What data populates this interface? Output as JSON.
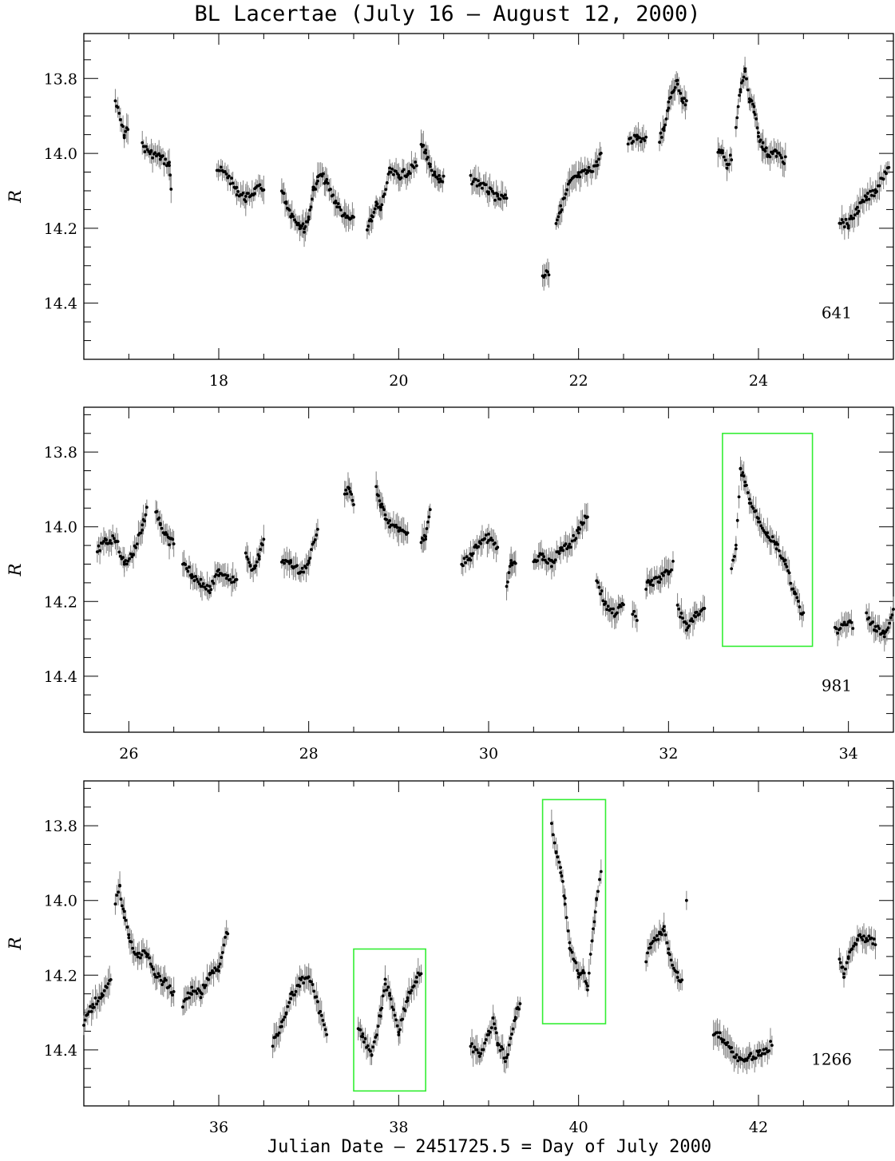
{
  "title": "BL Lacertae   (July 16 – August 12, 2000)",
  "xlabel": "Julian Date – 2451725.5 = Day of July 2000",
  "colors": {
    "points": "#000000",
    "errorbars": "#808080",
    "highlight_box": "#33ee33",
    "axes": "#000000"
  },
  "chart_data": [
    {
      "type": "scatter",
      "panel": "top",
      "ylabel": "R",
      "xlim": [
        16.5,
        25.5
      ],
      "ylim": [
        14.55,
        13.68
      ],
      "y_inverted": true,
      "x_ticks": [
        18,
        20,
        22,
        24
      ],
      "y_ticks": [
        13.8,
        14.0,
        14.2,
        14.4
      ],
      "count_label": "641",
      "highlight_boxes": [],
      "segments": [
        {
          "x": [
            16.85,
            16.95,
            16.99
          ],
          "y": [
            13.86,
            13.95,
            13.93
          ]
        },
        {
          "x": [
            17.15,
            17.25,
            17.35,
            17.45,
            17.47
          ],
          "y": [
            13.98,
            14.0,
            14.01,
            14.03,
            14.09
          ]
        },
        {
          "x": [
            17.98,
            18.1,
            18.2,
            18.3,
            18.4,
            18.5
          ],
          "y": [
            14.04,
            14.06,
            14.1,
            14.12,
            14.1,
            14.09
          ]
        },
        {
          "x": [
            18.7,
            18.75,
            18.8,
            18.9,
            18.95,
            19.0,
            19.05,
            19.1,
            19.15,
            19.2,
            19.3,
            19.4,
            19.5
          ],
          "y": [
            14.1,
            14.13,
            14.16,
            14.19,
            14.2,
            14.17,
            14.1,
            14.07,
            14.06,
            14.08,
            14.13,
            14.17,
            14.18
          ]
        },
        {
          "x": [
            19.65,
            19.7,
            19.75,
            19.8,
            19.9,
            20.0,
            20.1,
            20.2
          ],
          "y": [
            14.21,
            14.17,
            14.14,
            14.15,
            14.05,
            14.06,
            14.05,
            14.03
          ]
        },
        {
          "x": [
            20.25,
            20.3,
            20.35,
            20.4,
            20.45,
            20.5
          ],
          "y": [
            13.97,
            14.0,
            14.04,
            14.06,
            14.07,
            14.07
          ]
        },
        {
          "x": [
            20.8,
            20.9,
            21.0,
            21.1,
            21.2
          ],
          "y": [
            14.07,
            14.08,
            14.1,
            14.12,
            14.12
          ]
        },
        {
          "x": [
            21.6,
            21.67
          ],
          "y": [
            14.32,
            14.32
          ]
        },
        {
          "x": [
            21.75,
            21.8,
            21.9,
            22.0,
            22.1,
            22.2,
            22.25
          ],
          "y": [
            14.18,
            14.15,
            14.08,
            14.06,
            14.05,
            14.03,
            14.0
          ]
        },
        {
          "x": [
            22.55,
            22.65,
            22.75
          ],
          "y": [
            13.97,
            13.96,
            13.96
          ]
        },
        {
          "x": [
            22.9,
            22.95,
            23.0,
            23.05,
            23.1,
            23.15,
            23.2
          ],
          "y": [
            13.96,
            13.94,
            13.87,
            13.83,
            13.81,
            13.85,
            13.87
          ]
        },
        {
          "x": [
            23.55,
            23.6,
            23.65,
            23.7
          ],
          "y": [
            13.99,
            14.0,
            14.03,
            14.01
          ]
        },
        {
          "x": [
            23.75,
            23.8,
            23.85,
            23.9,
            23.95,
            24.0,
            24.05,
            24.1,
            24.2,
            24.3
          ],
          "y": [
            13.93,
            13.83,
            13.78,
            13.86,
            13.88,
            13.95,
            13.98,
            14.0,
            14.0,
            14.02
          ]
        },
        {
          "x": [
            24.9,
            25.0,
            25.1,
            25.2,
            25.3,
            25.45
          ],
          "y": [
            14.18,
            14.19,
            14.15,
            14.12,
            14.1,
            14.03
          ]
        }
      ]
    },
    {
      "type": "scatter",
      "panel": "middle",
      "ylabel": "R",
      "xlim": [
        25.5,
        34.5
      ],
      "ylim": [
        14.55,
        13.68
      ],
      "y_inverted": true,
      "x_ticks": [
        26,
        28,
        30,
        32,
        34
      ],
      "y_ticks": [
        13.8,
        14.0,
        14.2,
        14.4
      ],
      "count_label": "981",
      "highlight_boxes": [
        {
          "x": [
            32.6,
            33.6
          ],
          "y": [
            13.75,
            14.32
          ]
        }
      ],
      "segments": [
        {
          "x": [
            25.65,
            25.75,
            25.85,
            25.95,
            26.05,
            26.15,
            26.2
          ],
          "y": [
            14.06,
            14.04,
            14.03,
            14.1,
            14.07,
            14.0,
            13.95
          ]
        },
        {
          "x": [
            26.3,
            26.35,
            26.4,
            26.45,
            26.5
          ],
          "y": [
            13.95,
            13.99,
            14.02,
            14.04,
            14.04
          ]
        },
        {
          "x": [
            26.6,
            26.7,
            26.8,
            26.9,
            27.0,
            27.1,
            27.2
          ],
          "y": [
            14.09,
            14.13,
            14.15,
            14.17,
            14.12,
            14.13,
            14.15
          ]
        },
        {
          "x": [
            27.3,
            27.35,
            27.4,
            27.45,
            27.5
          ],
          "y": [
            14.08,
            14.11,
            14.1,
            14.08,
            14.03
          ]
        },
        {
          "x": [
            27.7,
            27.8,
            27.9,
            28.0,
            28.1
          ],
          "y": [
            14.09,
            14.1,
            14.12,
            14.1,
            14.0
          ]
        },
        {
          "x": [
            28.4,
            28.45,
            28.5
          ],
          "y": [
            13.91,
            13.9,
            13.93
          ]
        },
        {
          "x": [
            28.75,
            28.8,
            28.85,
            28.9,
            29.0,
            29.1
          ],
          "y": [
            13.9,
            13.94,
            13.97,
            13.99,
            14.01,
            14.02
          ]
        },
        {
          "x": [
            29.25,
            29.3,
            29.35
          ],
          "y": [
            14.04,
            14.03,
            13.96
          ]
        },
        {
          "x": [
            29.7,
            29.8,
            29.9,
            30.0,
            30.1
          ],
          "y": [
            14.1,
            14.08,
            14.04,
            14.03,
            14.06
          ]
        },
        {
          "x": [
            30.2,
            30.25,
            30.3
          ],
          "y": [
            14.15,
            14.1,
            14.09
          ]
        },
        {
          "x": [
            30.5,
            30.6,
            30.7,
            30.8,
            30.9,
            31.0,
            31.1
          ],
          "y": [
            14.09,
            14.08,
            14.1,
            14.06,
            14.05,
            14.01,
            13.97
          ]
        },
        {
          "x": [
            31.2,
            31.3,
            31.4,
            31.5
          ],
          "y": [
            14.14,
            14.21,
            14.23,
            14.21
          ]
        },
        {
          "x": [
            31.6,
            31.65
          ],
          "y": [
            14.23,
            14.24
          ]
        },
        {
          "x": [
            31.75,
            31.8,
            31.9,
            32.0,
            32.05
          ],
          "y": [
            14.16,
            14.15,
            14.14,
            14.12,
            14.1
          ]
        },
        {
          "x": [
            32.1,
            32.2,
            32.3,
            32.4
          ],
          "y": [
            14.22,
            14.27,
            14.24,
            14.22
          ]
        },
        {
          "x": [
            32.7,
            32.75,
            32.8,
            32.85,
            32.9,
            33.0,
            33.1,
            33.2,
            33.3,
            33.4,
            33.5
          ],
          "y": [
            14.12,
            14.06,
            13.85,
            13.88,
            13.93,
            13.98,
            14.02,
            14.05,
            14.1,
            14.18,
            14.24
          ]
        },
        {
          "x": [
            33.85,
            34.0,
            34.05
          ],
          "y": [
            14.28,
            14.25,
            14.27
          ]
        },
        {
          "x": [
            34.2,
            34.3,
            34.4,
            34.5
          ],
          "y": [
            14.24,
            14.27,
            14.29,
            14.22
          ]
        }
      ]
    },
    {
      "type": "scatter",
      "panel": "bottom",
      "ylabel": "R",
      "xlim": [
        34.5,
        43.5
      ],
      "ylim": [
        14.55,
        13.68
      ],
      "y_inverted": true,
      "x_ticks": [
        36,
        38,
        40,
        42
      ],
      "y_ticks": [
        13.8,
        14.0,
        14.2,
        14.4
      ],
      "count_label": "1266",
      "highlight_boxes": [
        {
          "x": [
            37.5,
            38.3
          ],
          "y": [
            14.13,
            14.51
          ]
        },
        {
          "x": [
            39.6,
            40.3
          ],
          "y": [
            13.73,
            14.33
          ]
        }
      ],
      "segments": [
        {
          "x": [
            34.5,
            34.6,
            34.7,
            34.8
          ],
          "y": [
            14.33,
            14.28,
            14.25,
            14.22
          ]
        },
        {
          "x": [
            34.85,
            34.9,
            34.95,
            35.0,
            35.1,
            35.2,
            35.3,
            35.4,
            35.5
          ],
          "y": [
            14.0,
            13.97,
            14.04,
            14.1,
            14.15,
            14.14,
            14.2,
            14.22,
            14.25
          ]
        },
        {
          "x": [
            35.6,
            35.7,
            35.8,
            35.9,
            36.0,
            36.1
          ],
          "y": [
            14.28,
            14.24,
            14.25,
            14.2,
            14.18,
            14.08
          ]
        },
        {
          "x": [
            36.6,
            36.7,
            36.75,
            36.8,
            36.9,
            37.0,
            37.1,
            37.2
          ],
          "y": [
            14.38,
            14.33,
            14.3,
            14.26,
            14.22,
            14.2,
            14.28,
            14.36
          ]
        },
        {
          "x": [
            37.55,
            37.6,
            37.7,
            37.8,
            37.85,
            37.9,
            38.0,
            38.1,
            38.2,
            38.25
          ],
          "y": [
            14.34,
            14.36,
            14.42,
            14.3,
            14.22,
            14.25,
            14.35,
            14.26,
            14.21,
            14.19
          ]
        },
        {
          "x": [
            38.8,
            38.9,
            39.0,
            39.05,
            39.1,
            39.2,
            39.3,
            39.35
          ],
          "y": [
            14.39,
            14.41,
            14.36,
            14.32,
            14.38,
            14.43,
            14.31,
            14.27
          ]
        },
        {
          "x": [
            39.7,
            39.75,
            39.8,
            39.85,
            39.9,
            40.0,
            40.05,
            40.1,
            40.15,
            40.2,
            40.25
          ],
          "y": [
            13.79,
            13.88,
            13.92,
            14.0,
            14.12,
            14.2,
            14.18,
            14.24,
            14.1,
            14.0,
            13.92
          ]
        },
        {
          "x": [
            40.75,
            40.8,
            40.9,
            40.95,
            41.0,
            41.1,
            41.15
          ],
          "y": [
            14.16,
            14.12,
            14.09,
            14.08,
            14.14,
            14.2,
            14.22
          ]
        },
        {
          "x": [
            41.2
          ],
          "y": [
            14.0
          ]
        },
        {
          "x": [
            41.5,
            41.6,
            41.7,
            41.8,
            41.9,
            42.0,
            42.1,
            42.15
          ],
          "y": [
            14.35,
            14.37,
            14.4,
            14.43,
            14.42,
            14.41,
            14.4,
            14.38
          ]
        },
        {
          "x": [
            42.9,
            42.95,
            43.0,
            43.1,
            43.2,
            43.3
          ],
          "y": [
            14.15,
            14.2,
            14.15,
            14.1,
            14.1,
            14.11
          ]
        }
      ]
    }
  ]
}
